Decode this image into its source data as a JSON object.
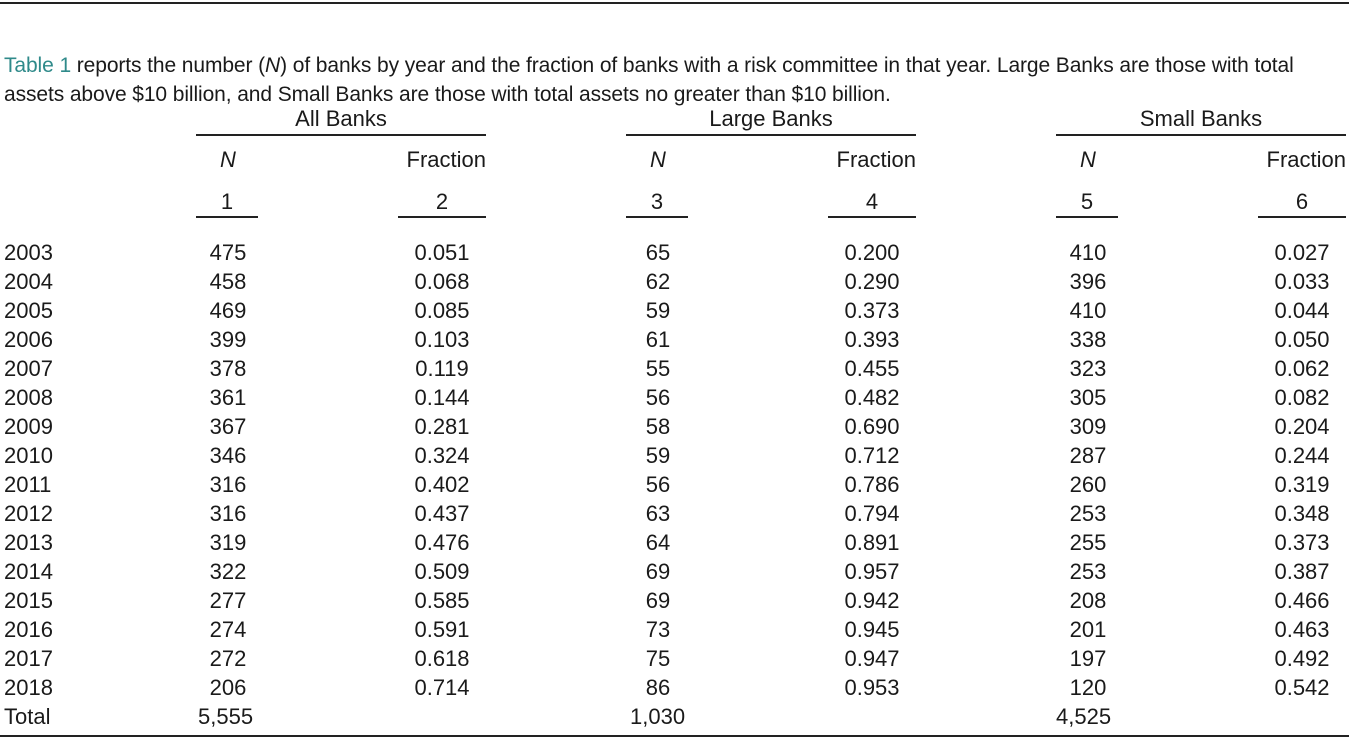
{
  "caption": {
    "ref": "Table 1",
    "text_a": " reports the number (",
    "n_symbol": "N",
    "text_b": ") of banks by year and the fraction of banks with a risk committee in that year. Large Banks are those with total assets above $10 billion, and Small Banks are those with total assets no greater than $10 billion."
  },
  "table": {
    "groups": [
      "All Banks",
      "Large Banks",
      "Small Banks"
    ],
    "subheaders": [
      "N",
      "Fraction",
      "N",
      "Fraction",
      "N",
      "Fraction"
    ],
    "column_numbers": [
      "1",
      "2",
      "3",
      "4",
      "5",
      "6"
    ],
    "rows": [
      {
        "year": "2003",
        "cells": [
          "475",
          "0.051",
          "65",
          "0.200",
          "410",
          "0.027"
        ]
      },
      {
        "year": "2004",
        "cells": [
          "458",
          "0.068",
          "62",
          "0.290",
          "396",
          "0.033"
        ]
      },
      {
        "year": "2005",
        "cells": [
          "469",
          "0.085",
          "59",
          "0.373",
          "410",
          "0.044"
        ]
      },
      {
        "year": "2006",
        "cells": [
          "399",
          "0.103",
          "61",
          "0.393",
          "338",
          "0.050"
        ]
      },
      {
        "year": "2007",
        "cells": [
          "378",
          "0.119",
          "55",
          "0.455",
          "323",
          "0.062"
        ]
      },
      {
        "year": "2008",
        "cells": [
          "361",
          "0.144",
          "56",
          "0.482",
          "305",
          "0.082"
        ]
      },
      {
        "year": "2009",
        "cells": [
          "367",
          "0.281",
          "58",
          "0.690",
          "309",
          "0.204"
        ]
      },
      {
        "year": "2010",
        "cells": [
          "346",
          "0.324",
          "59",
          "0.712",
          "287",
          "0.244"
        ]
      },
      {
        "year": "2011",
        "cells": [
          "316",
          "0.402",
          "56",
          "0.786",
          "260",
          "0.319"
        ]
      },
      {
        "year": "2012",
        "cells": [
          "316",
          "0.437",
          "63",
          "0.794",
          "253",
          "0.348"
        ]
      },
      {
        "year": "2013",
        "cells": [
          "319",
          "0.476",
          "64",
          "0.891",
          "255",
          "0.373"
        ]
      },
      {
        "year": "2014",
        "cells": [
          "322",
          "0.509",
          "69",
          "0.957",
          "253",
          "0.387"
        ]
      },
      {
        "year": "2015",
        "cells": [
          "277",
          "0.585",
          "69",
          "0.942",
          "208",
          "0.466"
        ]
      },
      {
        "year": "2016",
        "cells": [
          "274",
          "0.591",
          "73",
          "0.945",
          "201",
          "0.463"
        ]
      },
      {
        "year": "2017",
        "cells": [
          "272",
          "0.618",
          "75",
          "0.947",
          "197",
          "0.492"
        ]
      },
      {
        "year": "2018",
        "cells": [
          "206",
          "0.714",
          "86",
          "0.953",
          "120",
          "0.542"
        ]
      }
    ],
    "total": {
      "label": "Total",
      "all_n": "5,555",
      "large_n": "1,030",
      "small_n": "4,525"
    }
  }
}
